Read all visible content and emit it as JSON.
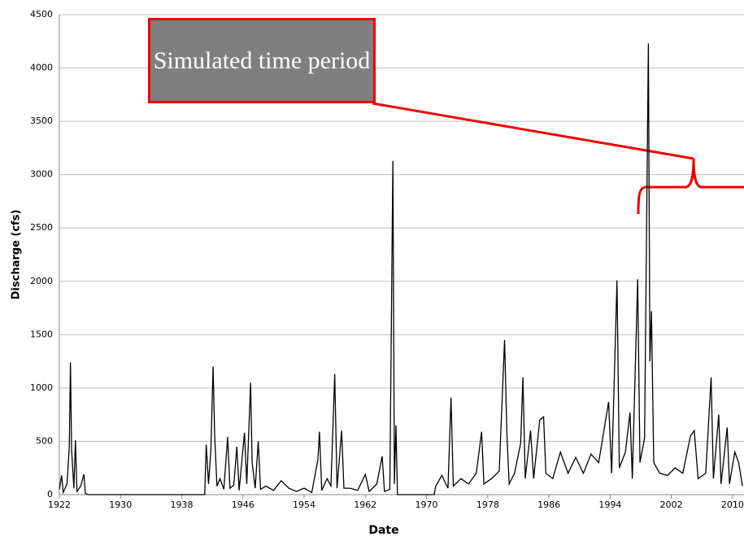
{
  "chart_data": {
    "type": "line",
    "xlabel": "Date",
    "ylabel": "Discharge (cfs)",
    "annotation": "Simulated time period",
    "color": "#000000",
    "grid": true,
    "xlim": [
      1922,
      2011.5
    ],
    "xticks": [
      1922,
      1930,
      1938,
      1946,
      1954,
      1962,
      1970,
      1978,
      1986,
      1994,
      2002,
      2010
    ],
    "ylim": [
      0,
      4500
    ],
    "yticks": [
      0,
      500,
      1000,
      1500,
      2000,
      2500,
      3000,
      3500,
      4000,
      4500
    ],
    "x": [
      1922.0,
      1922.3,
      1922.5,
      1923.0,
      1923.3,
      1923.45,
      1923.6,
      1923.9,
      1924.1,
      1924.3,
      1924.8,
      1925.2,
      1925.4,
      1925.8,
      1941.0,
      1941.2,
      1941.5,
      1941.8,
      1942.1,
      1942.3,
      1942.6,
      1943.0,
      1943.5,
      1944.0,
      1944.3,
      1944.8,
      1945.2,
      1945.5,
      1946.2,
      1946.5,
      1947.0,
      1947.2,
      1947.6,
      1948.0,
      1948.3,
      1949.0,
      1950.0,
      1951.0,
      1952.0,
      1953.0,
      1954.0,
      1955.0,
      1955.8,
      1956.0,
      1956.3,
      1957.0,
      1957.5,
      1958.0,
      1958.3,
      1958.9,
      1959.2,
      1960.0,
      1961.0,
      1962.0,
      1962.5,
      1963.5,
      1964.2,
      1964.5,
      1965.2,
      1965.6,
      1965.8,
      1966.0,
      1966.2,
      1971.0,
      1971.2,
      1972.0,
      1972.8,
      1973.2,
      1973.5,
      1974.5,
      1975.5,
      1976.5,
      1977.2,
      1977.5,
      1978.5,
      1979.5,
      1980.2,
      1980.5,
      1980.8,
      1981.5,
      1982.3,
      1982.6,
      1982.9,
      1983.6,
      1984.0,
      1984.8,
      1985.3,
      1985.6,
      1986.5,
      1987.5,
      1988.5,
      1989.5,
      1990.5,
      1991.5,
      1992.5,
      1993.8,
      1994.2,
      1994.9,
      1995.2,
      1996.0,
      1996.6,
      1996.9,
      1997.6,
      1997.9,
      1998.5,
      1999.0,
      1999.2,
      1999.4,
      1999.7,
      2000.5,
      2001.5,
      2002.5,
      2003.5,
      2004.5,
      2005.0,
      2005.5,
      2006.5,
      2007.2,
      2007.5,
      2008.2,
      2008.5,
      2009.3,
      2009.6,
      2010.3,
      2010.8,
      2011.3
    ],
    "values": [
      50,
      180,
      20,
      100,
      450,
      1240,
      420,
      60,
      510,
      30,
      80,
      190,
      10,
      0,
      0,
      470,
      100,
      400,
      1200,
      560,
      80,
      150,
      50,
      540,
      60,
      90,
      450,
      40,
      580,
      100,
      1050,
      300,
      60,
      500,
      50,
      80,
      40,
      130,
      60,
      30,
      60,
      20,
      330,
      590,
      40,
      150,
      80,
      1130,
      60,
      600,
      60,
      60,
      40,
      190,
      30,
      100,
      360,
      30,
      50,
      3130,
      100,
      650,
      0,
      0,
      80,
      180,
      60,
      910,
      80,
      150,
      100,
      200,
      590,
      100,
      150,
      220,
      1450,
      580,
      100,
      200,
      480,
      1100,
      150,
      600,
      150,
      700,
      730,
      200,
      150,
      400,
      200,
      350,
      200,
      380,
      300,
      870,
      200,
      2010,
      250,
      400,
      770,
      150,
      2020,
      300,
      530,
      4230,
      1250,
      1720,
      300,
      200,
      180,
      250,
      200,
      550,
      600,
      150,
      200,
      1100,
      150,
      750,
      100,
      630,
      100,
      400,
      300,
      80
    ]
  }
}
